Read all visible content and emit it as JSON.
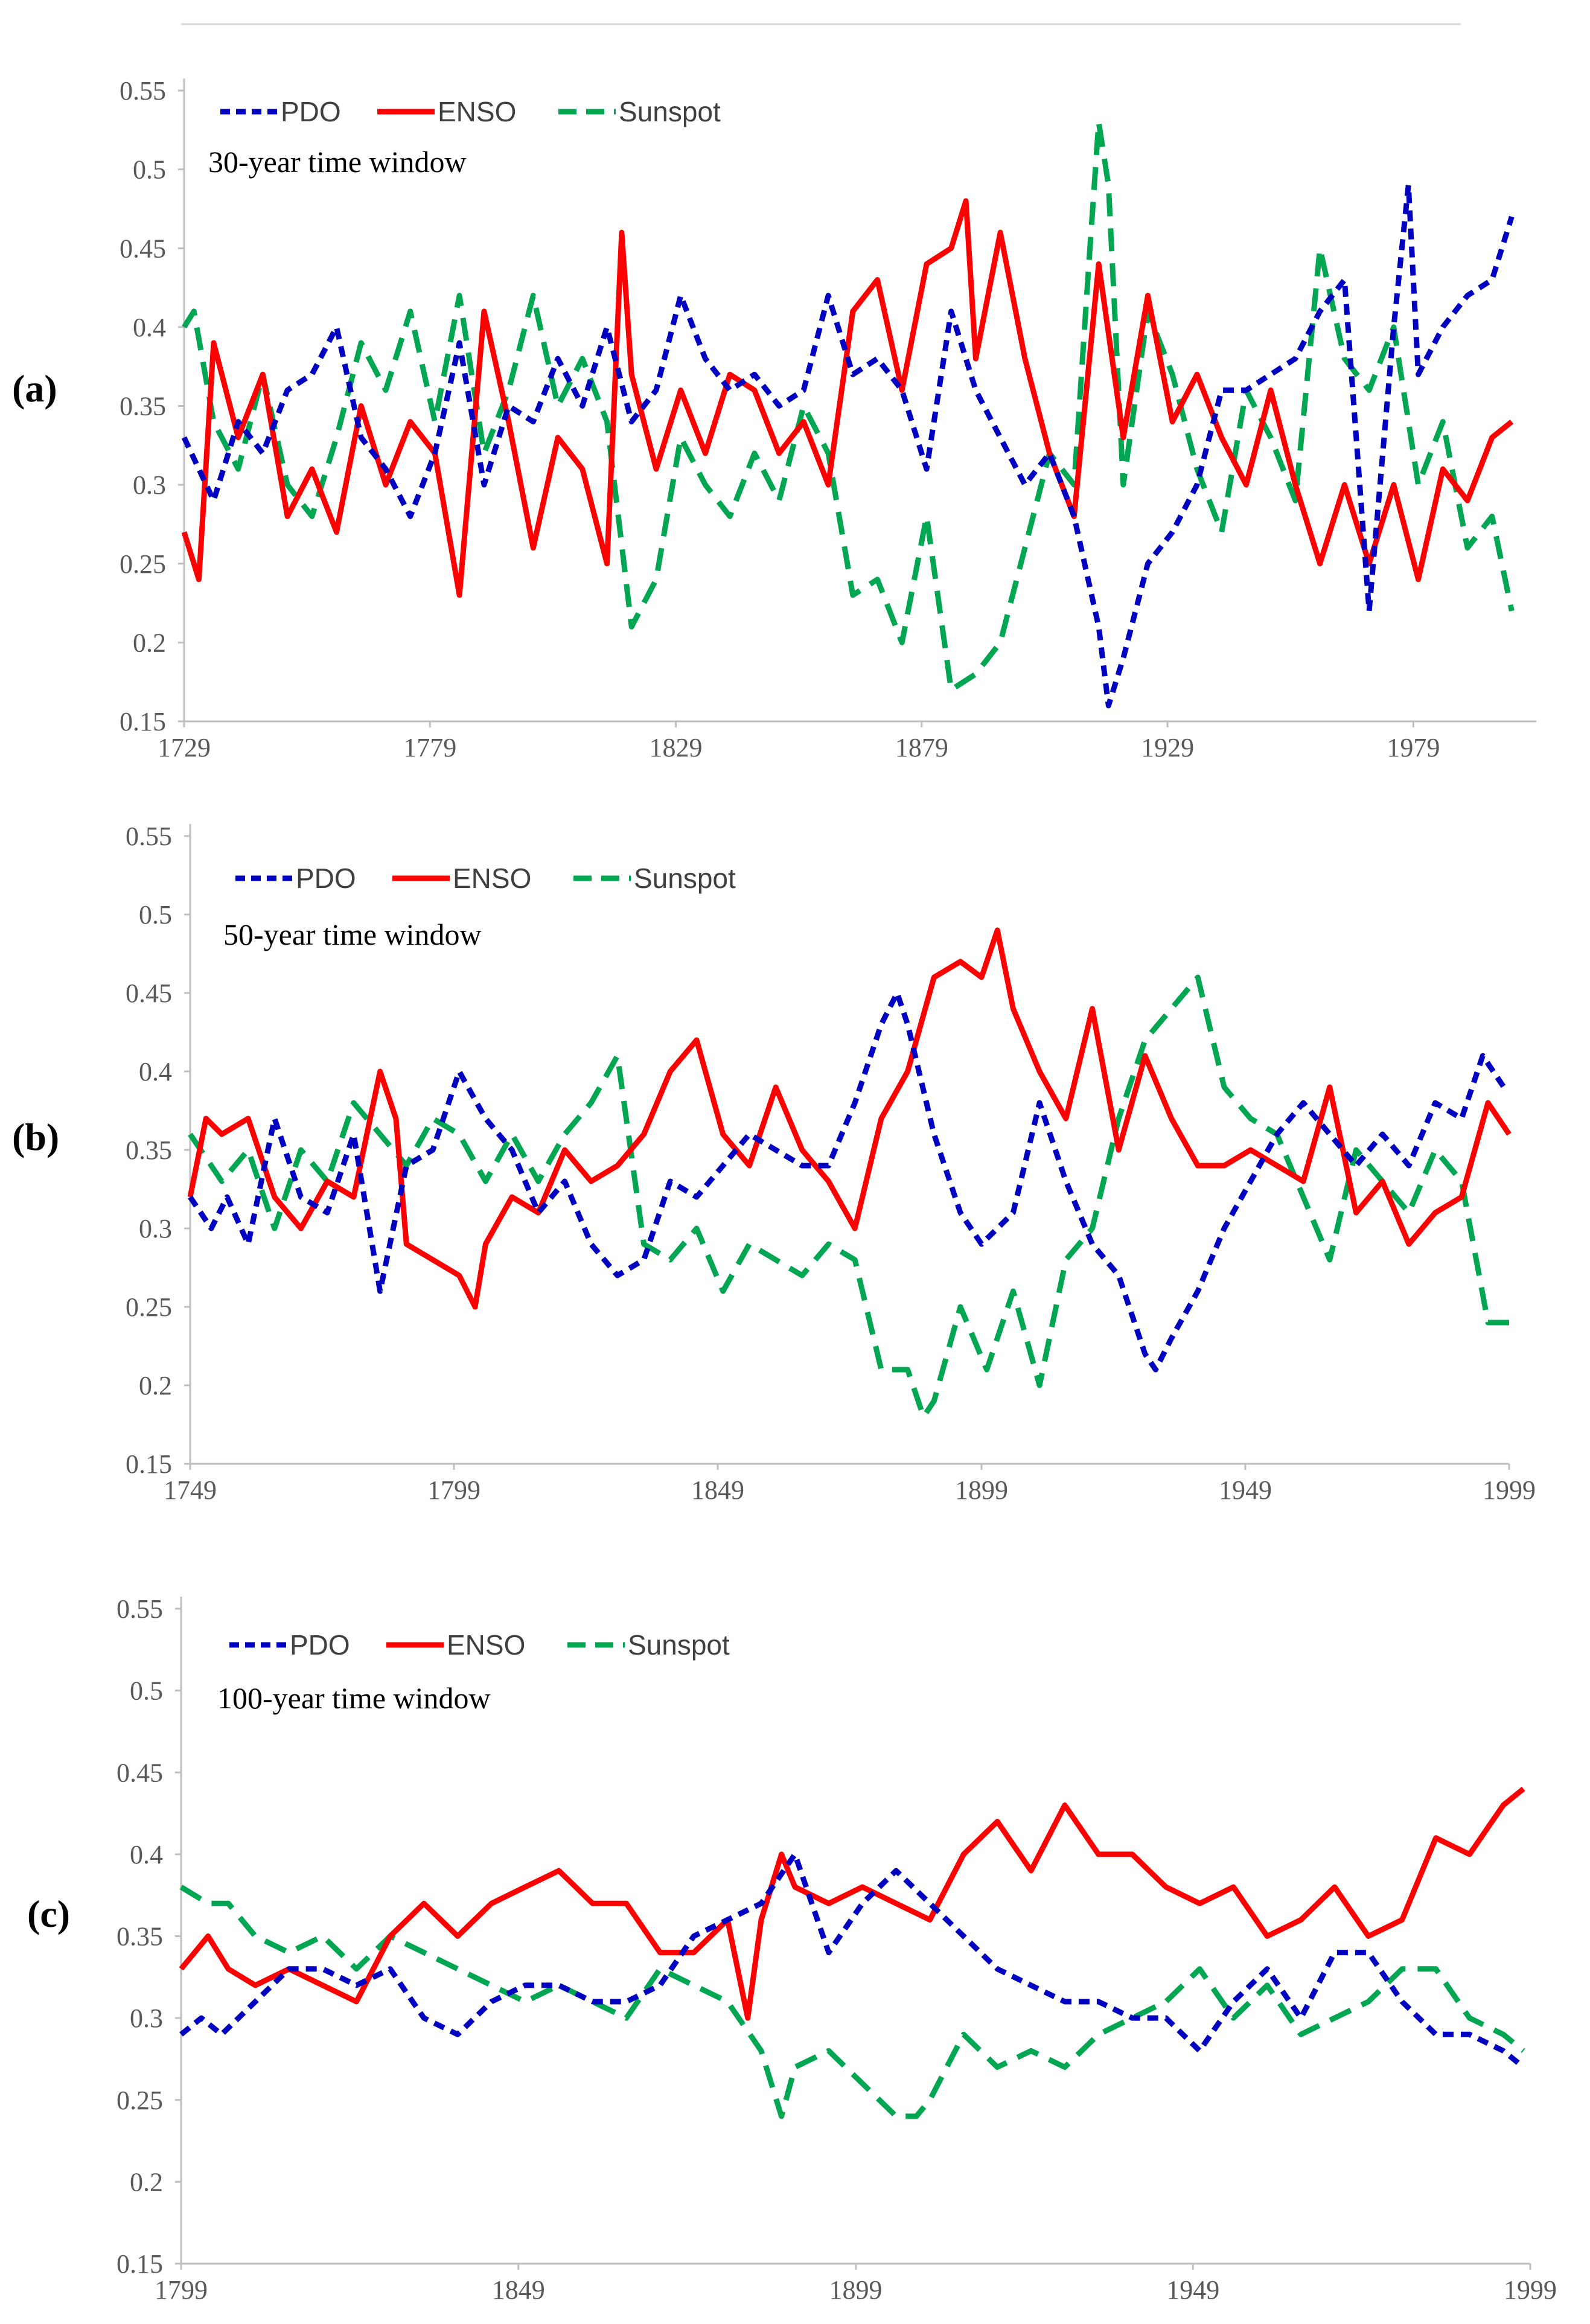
{
  "chart_data": [
    {
      "type": "line",
      "panel_label": "(a)",
      "annotation": "30-year time window",
      "x_start": 1729,
      "x_end": 2004,
      "xticks": [
        1729,
        1779,
        1829,
        1879,
        1929,
        1979
      ],
      "ylim": [
        0.15,
        0.55
      ],
      "yticks": [
        "0.15",
        "0.2",
        "0.25",
        "0.3",
        "0.35",
        "0.4",
        "0.45",
        "0.5",
        "0.55"
      ],
      "legend": [
        "PDO",
        "ENSO",
        "Sunspot"
      ],
      "series": [
        {
          "name": "PDO",
          "color": "#0000c0",
          "dash": "dashed-dots",
          "x": [
            1729,
            1735,
            1740,
            1745,
            1750,
            1755,
            1760,
            1765,
            1770,
            1775,
            1780,
            1785,
            1790,
            1795,
            1800,
            1805,
            1810,
            1815,
            1820,
            1825,
            1830,
            1835,
            1840,
            1845,
            1850,
            1855,
            1860,
            1865,
            1870,
            1875,
            1880,
            1885,
            1890,
            1895,
            1900,
            1905,
            1910,
            1915,
            1917,
            1920,
            1925,
            1930,
            1935,
            1940,
            1945,
            1950,
            1955,
            1960,
            1965,
            1970,
            1975,
            1978,
            1980,
            1985,
            1990,
            1995,
            1999
          ],
          "y": [
            0.33,
            0.29,
            0.34,
            0.32,
            0.36,
            0.37,
            0.4,
            0.33,
            0.31,
            0.28,
            0.32,
            0.39,
            0.3,
            0.35,
            0.34,
            0.38,
            0.35,
            0.4,
            0.34,
            0.36,
            0.42,
            0.38,
            0.36,
            0.37,
            0.35,
            0.36,
            0.42,
            0.37,
            0.38,
            0.36,
            0.31,
            0.41,
            0.36,
            0.33,
            0.3,
            0.32,
            0.28,
            0.21,
            0.16,
            0.19,
            0.25,
            0.27,
            0.3,
            0.36,
            0.36,
            0.37,
            0.38,
            0.41,
            0.43,
            0.22,
            0.4,
            0.49,
            0.37,
            0.4,
            0.42,
            0.43,
            0.47
          ]
        },
        {
          "name": "ENSO",
          "color": "#ff0000",
          "dash": "solid",
          "x": [
            1729,
            1732,
            1735,
            1740,
            1745,
            1750,
            1755,
            1760,
            1765,
            1770,
            1775,
            1780,
            1785,
            1790,
            1795,
            1800,
            1805,
            1810,
            1815,
            1818,
            1820,
            1825,
            1830,
            1835,
            1840,
            1845,
            1850,
            1855,
            1860,
            1865,
            1870,
            1875,
            1880,
            1885,
            1888,
            1890,
            1895,
            1900,
            1905,
            1910,
            1915,
            1920,
            1925,
            1930,
            1935,
            1940,
            1945,
            1950,
            1955,
            1960,
            1965,
            1970,
            1975,
            1980,
            1985,
            1990,
            1995,
            1999
          ],
          "y": [
            0.27,
            0.24,
            0.39,
            0.33,
            0.37,
            0.28,
            0.31,
            0.27,
            0.35,
            0.3,
            0.34,
            0.32,
            0.23,
            0.41,
            0.34,
            0.26,
            0.33,
            0.31,
            0.25,
            0.46,
            0.37,
            0.31,
            0.36,
            0.32,
            0.37,
            0.36,
            0.32,
            0.34,
            0.3,
            0.41,
            0.43,
            0.36,
            0.44,
            0.45,
            0.48,
            0.38,
            0.46,
            0.38,
            0.32,
            0.28,
            0.44,
            0.33,
            0.42,
            0.34,
            0.37,
            0.33,
            0.3,
            0.36,
            0.3,
            0.25,
            0.3,
            0.25,
            0.3,
            0.24,
            0.31,
            0.29,
            0.33,
            0.34
          ]
        },
        {
          "name": "Sunspot",
          "color": "#00a651",
          "dash": "long-dash",
          "x": [
            1729,
            1731,
            1735,
            1740,
            1745,
            1750,
            1755,
            1760,
            1765,
            1770,
            1775,
            1780,
            1785,
            1790,
            1795,
            1800,
            1805,
            1810,
            1815,
            1820,
            1825,
            1830,
            1835,
            1840,
            1845,
            1850,
            1855,
            1860,
            1865,
            1870,
            1875,
            1880,
            1885,
            1890,
            1895,
            1900,
            1905,
            1910,
            1913,
            1915,
            1917,
            1920,
            1925,
            1930,
            1935,
            1940,
            1945,
            1950,
            1955,
            1960,
            1965,
            1970,
            1975,
            1980,
            1985,
            1990,
            1995,
            1999
          ],
          "y": [
            0.4,
            0.41,
            0.34,
            0.31,
            0.37,
            0.3,
            0.28,
            0.33,
            0.39,
            0.36,
            0.41,
            0.34,
            0.42,
            0.32,
            0.36,
            0.42,
            0.35,
            0.38,
            0.34,
            0.21,
            0.24,
            0.33,
            0.3,
            0.28,
            0.32,
            0.29,
            0.35,
            0.32,
            0.23,
            0.24,
            0.2,
            0.28,
            0.17,
            0.18,
            0.2,
            0.26,
            0.32,
            0.3,
            0.44,
            0.53,
            0.49,
            0.3,
            0.41,
            0.37,
            0.31,
            0.27,
            0.36,
            0.33,
            0.29,
            0.45,
            0.38,
            0.36,
            0.4,
            0.3,
            0.34,
            0.26,
            0.28,
            0.22
          ]
        }
      ]
    },
    {
      "type": "line",
      "panel_label": "(b)",
      "annotation": "50-year time window",
      "x_start": 1749,
      "x_end": 1999,
      "xticks": [
        1749,
        1799,
        1849,
        1899,
        1949,
        1999
      ],
      "ylim": [
        0.15,
        0.55
      ],
      "yticks": [
        "0.15",
        "0.2",
        "0.25",
        "0.3",
        "0.35",
        "0.4",
        "0.45",
        "0.5",
        "0.55"
      ],
      "legend": [
        "PDO",
        "ENSO",
        "Sunspot"
      ],
      "series": [
        {
          "name": "PDO",
          "color": "#0000c0",
          "dash": "dashed-dots",
          "x": [
            1749,
            1753,
            1756,
            1760,
            1765,
            1770,
            1775,
            1780,
            1785,
            1790,
            1795,
            1800,
            1805,
            1810,
            1815,
            1820,
            1825,
            1830,
            1835,
            1840,
            1845,
            1850,
            1855,
            1860,
            1865,
            1870,
            1875,
            1880,
            1883,
            1885,
            1890,
            1895,
            1899,
            1905,
            1910,
            1915,
            1920,
            1925,
            1930,
            1932,
            1935,
            1940,
            1945,
            1950,
            1955,
            1960,
            1965,
            1970,
            1975,
            1980,
            1985,
            1990,
            1994,
            1998
          ],
          "y": [
            0.32,
            0.3,
            0.32,
            0.29,
            0.37,
            0.32,
            0.31,
            0.36,
            0.26,
            0.34,
            0.35,
            0.4,
            0.37,
            0.35,
            0.31,
            0.33,
            0.29,
            0.27,
            0.28,
            0.33,
            0.32,
            0.34,
            0.36,
            0.35,
            0.34,
            0.34,
            0.38,
            0.43,
            0.45,
            0.43,
            0.36,
            0.31,
            0.29,
            0.31,
            0.38,
            0.33,
            0.29,
            0.27,
            0.22,
            0.21,
            0.23,
            0.26,
            0.3,
            0.33,
            0.36,
            0.38,
            0.36,
            0.34,
            0.36,
            0.34,
            0.38,
            0.37,
            0.41,
            0.39
          ]
        },
        {
          "name": "ENSO",
          "color": "#ff0000",
          "dash": "solid",
          "x": [
            1749,
            1752,
            1755,
            1760,
            1765,
            1770,
            1775,
            1780,
            1785,
            1788,
            1790,
            1795,
            1800,
            1803,
            1805,
            1810,
            1815,
            1820,
            1825,
            1830,
            1835,
            1840,
            1845,
            1850,
            1855,
            1860,
            1865,
            1870,
            1875,
            1880,
            1885,
            1890,
            1895,
            1899,
            1902,
            1905,
            1910,
            1915,
            1920,
            1925,
            1930,
            1935,
            1940,
            1945,
            1950,
            1955,
            1960,
            1965,
            1970,
            1975,
            1980,
            1985,
            1990,
            1995,
            1999
          ],
          "y": [
            0.32,
            0.37,
            0.36,
            0.37,
            0.32,
            0.3,
            0.33,
            0.32,
            0.4,
            0.37,
            0.29,
            0.28,
            0.27,
            0.25,
            0.29,
            0.32,
            0.31,
            0.35,
            0.33,
            0.34,
            0.36,
            0.4,
            0.42,
            0.36,
            0.34,
            0.39,
            0.35,
            0.33,
            0.3,
            0.37,
            0.4,
            0.46,
            0.47,
            0.46,
            0.49,
            0.44,
            0.4,
            0.37,
            0.44,
            0.35,
            0.41,
            0.37,
            0.34,
            0.34,
            0.35,
            0.34,
            0.33,
            0.39,
            0.31,
            0.33,
            0.29,
            0.31,
            0.32,
            0.38,
            0.36
          ]
        },
        {
          "name": "Sunspot",
          "color": "#00a651",
          "dash": "long-dash",
          "x": [
            1749,
            1755,
            1760,
            1765,
            1770,
            1775,
            1780,
            1785,
            1790,
            1795,
            1800,
            1805,
            1810,
            1815,
            1820,
            1825,
            1830,
            1835,
            1840,
            1845,
            1850,
            1855,
            1860,
            1865,
            1870,
            1875,
            1880,
            1885,
            1888,
            1890,
            1895,
            1900,
            1905,
            1910,
            1915,
            1920,
            1925,
            1930,
            1935,
            1940,
            1945,
            1950,
            1955,
            1960,
            1965,
            1970,
            1975,
            1980,
            1985,
            1990,
            1995,
            1999
          ],
          "y": [
            0.36,
            0.33,
            0.35,
            0.3,
            0.35,
            0.33,
            0.38,
            0.36,
            0.34,
            0.37,
            0.36,
            0.33,
            0.36,
            0.33,
            0.36,
            0.38,
            0.41,
            0.29,
            0.28,
            0.3,
            0.26,
            0.29,
            0.28,
            0.27,
            0.29,
            0.28,
            0.21,
            0.21,
            0.18,
            0.19,
            0.25,
            0.21,
            0.26,
            0.2,
            0.28,
            0.3,
            0.37,
            0.42,
            0.44,
            0.46,
            0.39,
            0.37,
            0.36,
            0.32,
            0.28,
            0.35,
            0.33,
            0.31,
            0.35,
            0.33,
            0.24,
            0.24
          ]
        }
      ]
    },
    {
      "type": "line",
      "panel_label": "(c)",
      "annotation": "100-year time window",
      "x_start": 1799,
      "x_end": 1999,
      "xticks": [
        1799,
        1849,
        1899,
        1949,
        1999
      ],
      "ylim": [
        0.15,
        0.55
      ],
      "yticks": [
        "0.15",
        "0.2",
        "0.25",
        "0.3",
        "0.35",
        "0.4",
        "0.45",
        "0.5",
        "0.55"
      ],
      "legend": [
        "PDO",
        "ENSO",
        "Sunspot"
      ],
      "series": [
        {
          "name": "PDO",
          "color": "#0000c0",
          "dash": "dashed-dots",
          "x": [
            1799,
            1802,
            1805,
            1810,
            1815,
            1820,
            1825,
            1830,
            1835,
            1840,
            1845,
            1850,
            1855,
            1860,
            1865,
            1870,
            1875,
            1880,
            1885,
            1890,
            1895,
            1900,
            1905,
            1910,
            1915,
            1920,
            1925,
            1930,
            1935,
            1940,
            1945,
            1950,
            1955,
            1960,
            1965,
            1970,
            1975,
            1980,
            1985,
            1990,
            1995,
            1998
          ],
          "y": [
            0.29,
            0.3,
            0.29,
            0.31,
            0.33,
            0.33,
            0.32,
            0.33,
            0.3,
            0.29,
            0.31,
            0.32,
            0.32,
            0.31,
            0.31,
            0.32,
            0.35,
            0.36,
            0.37,
            0.4,
            0.34,
            0.37,
            0.39,
            0.37,
            0.35,
            0.33,
            0.32,
            0.31,
            0.31,
            0.3,
            0.3,
            0.28,
            0.31,
            0.33,
            0.3,
            0.34,
            0.34,
            0.31,
            0.29,
            0.29,
            0.28,
            0.27
          ]
        },
        {
          "name": "ENSO",
          "color": "#ff0000",
          "dash": "solid",
          "x": [
            1799,
            1803,
            1806,
            1810,
            1815,
            1820,
            1825,
            1830,
            1835,
            1840,
            1845,
            1850,
            1855,
            1860,
            1865,
            1870,
            1875,
            1880,
            1883,
            1885,
            1888,
            1890,
            1895,
            1900,
            1905,
            1910,
            1915,
            1920,
            1925,
            1930,
            1935,
            1940,
            1945,
            1950,
            1955,
            1960,
            1965,
            1970,
            1975,
            1980,
            1985,
            1990,
            1995,
            1998
          ],
          "y": [
            0.33,
            0.35,
            0.33,
            0.32,
            0.33,
            0.32,
            0.31,
            0.35,
            0.37,
            0.35,
            0.37,
            0.38,
            0.39,
            0.37,
            0.37,
            0.34,
            0.34,
            0.36,
            0.3,
            0.36,
            0.4,
            0.38,
            0.37,
            0.38,
            0.37,
            0.36,
            0.4,
            0.42,
            0.39,
            0.43,
            0.4,
            0.4,
            0.38,
            0.37,
            0.38,
            0.35,
            0.36,
            0.38,
            0.35,
            0.36,
            0.41,
            0.4,
            0.43,
            0.44
          ]
        },
        {
          "name": "Sunspot",
          "color": "#00a651",
          "dash": "long-dash",
          "x": [
            1799,
            1803,
            1806,
            1810,
            1815,
            1820,
            1825,
            1830,
            1835,
            1840,
            1845,
            1850,
            1855,
            1860,
            1865,
            1870,
            1875,
            1880,
            1885,
            1888,
            1890,
            1895,
            1900,
            1905,
            1908,
            1910,
            1915,
            1920,
            1925,
            1930,
            1935,
            1940,
            1945,
            1950,
            1955,
            1960,
            1965,
            1970,
            1975,
            1980,
            1985,
            1990,
            1995,
            1998
          ],
          "y": [
            0.38,
            0.37,
            0.37,
            0.35,
            0.34,
            0.35,
            0.33,
            0.35,
            0.34,
            0.33,
            0.32,
            0.31,
            0.32,
            0.31,
            0.3,
            0.33,
            0.32,
            0.31,
            0.28,
            0.24,
            0.27,
            0.28,
            0.26,
            0.24,
            0.24,
            0.25,
            0.29,
            0.27,
            0.28,
            0.27,
            0.29,
            0.3,
            0.31,
            0.33,
            0.3,
            0.32,
            0.29,
            0.3,
            0.31,
            0.33,
            0.33,
            0.3,
            0.29,
            0.28
          ]
        }
      ]
    }
  ]
}
